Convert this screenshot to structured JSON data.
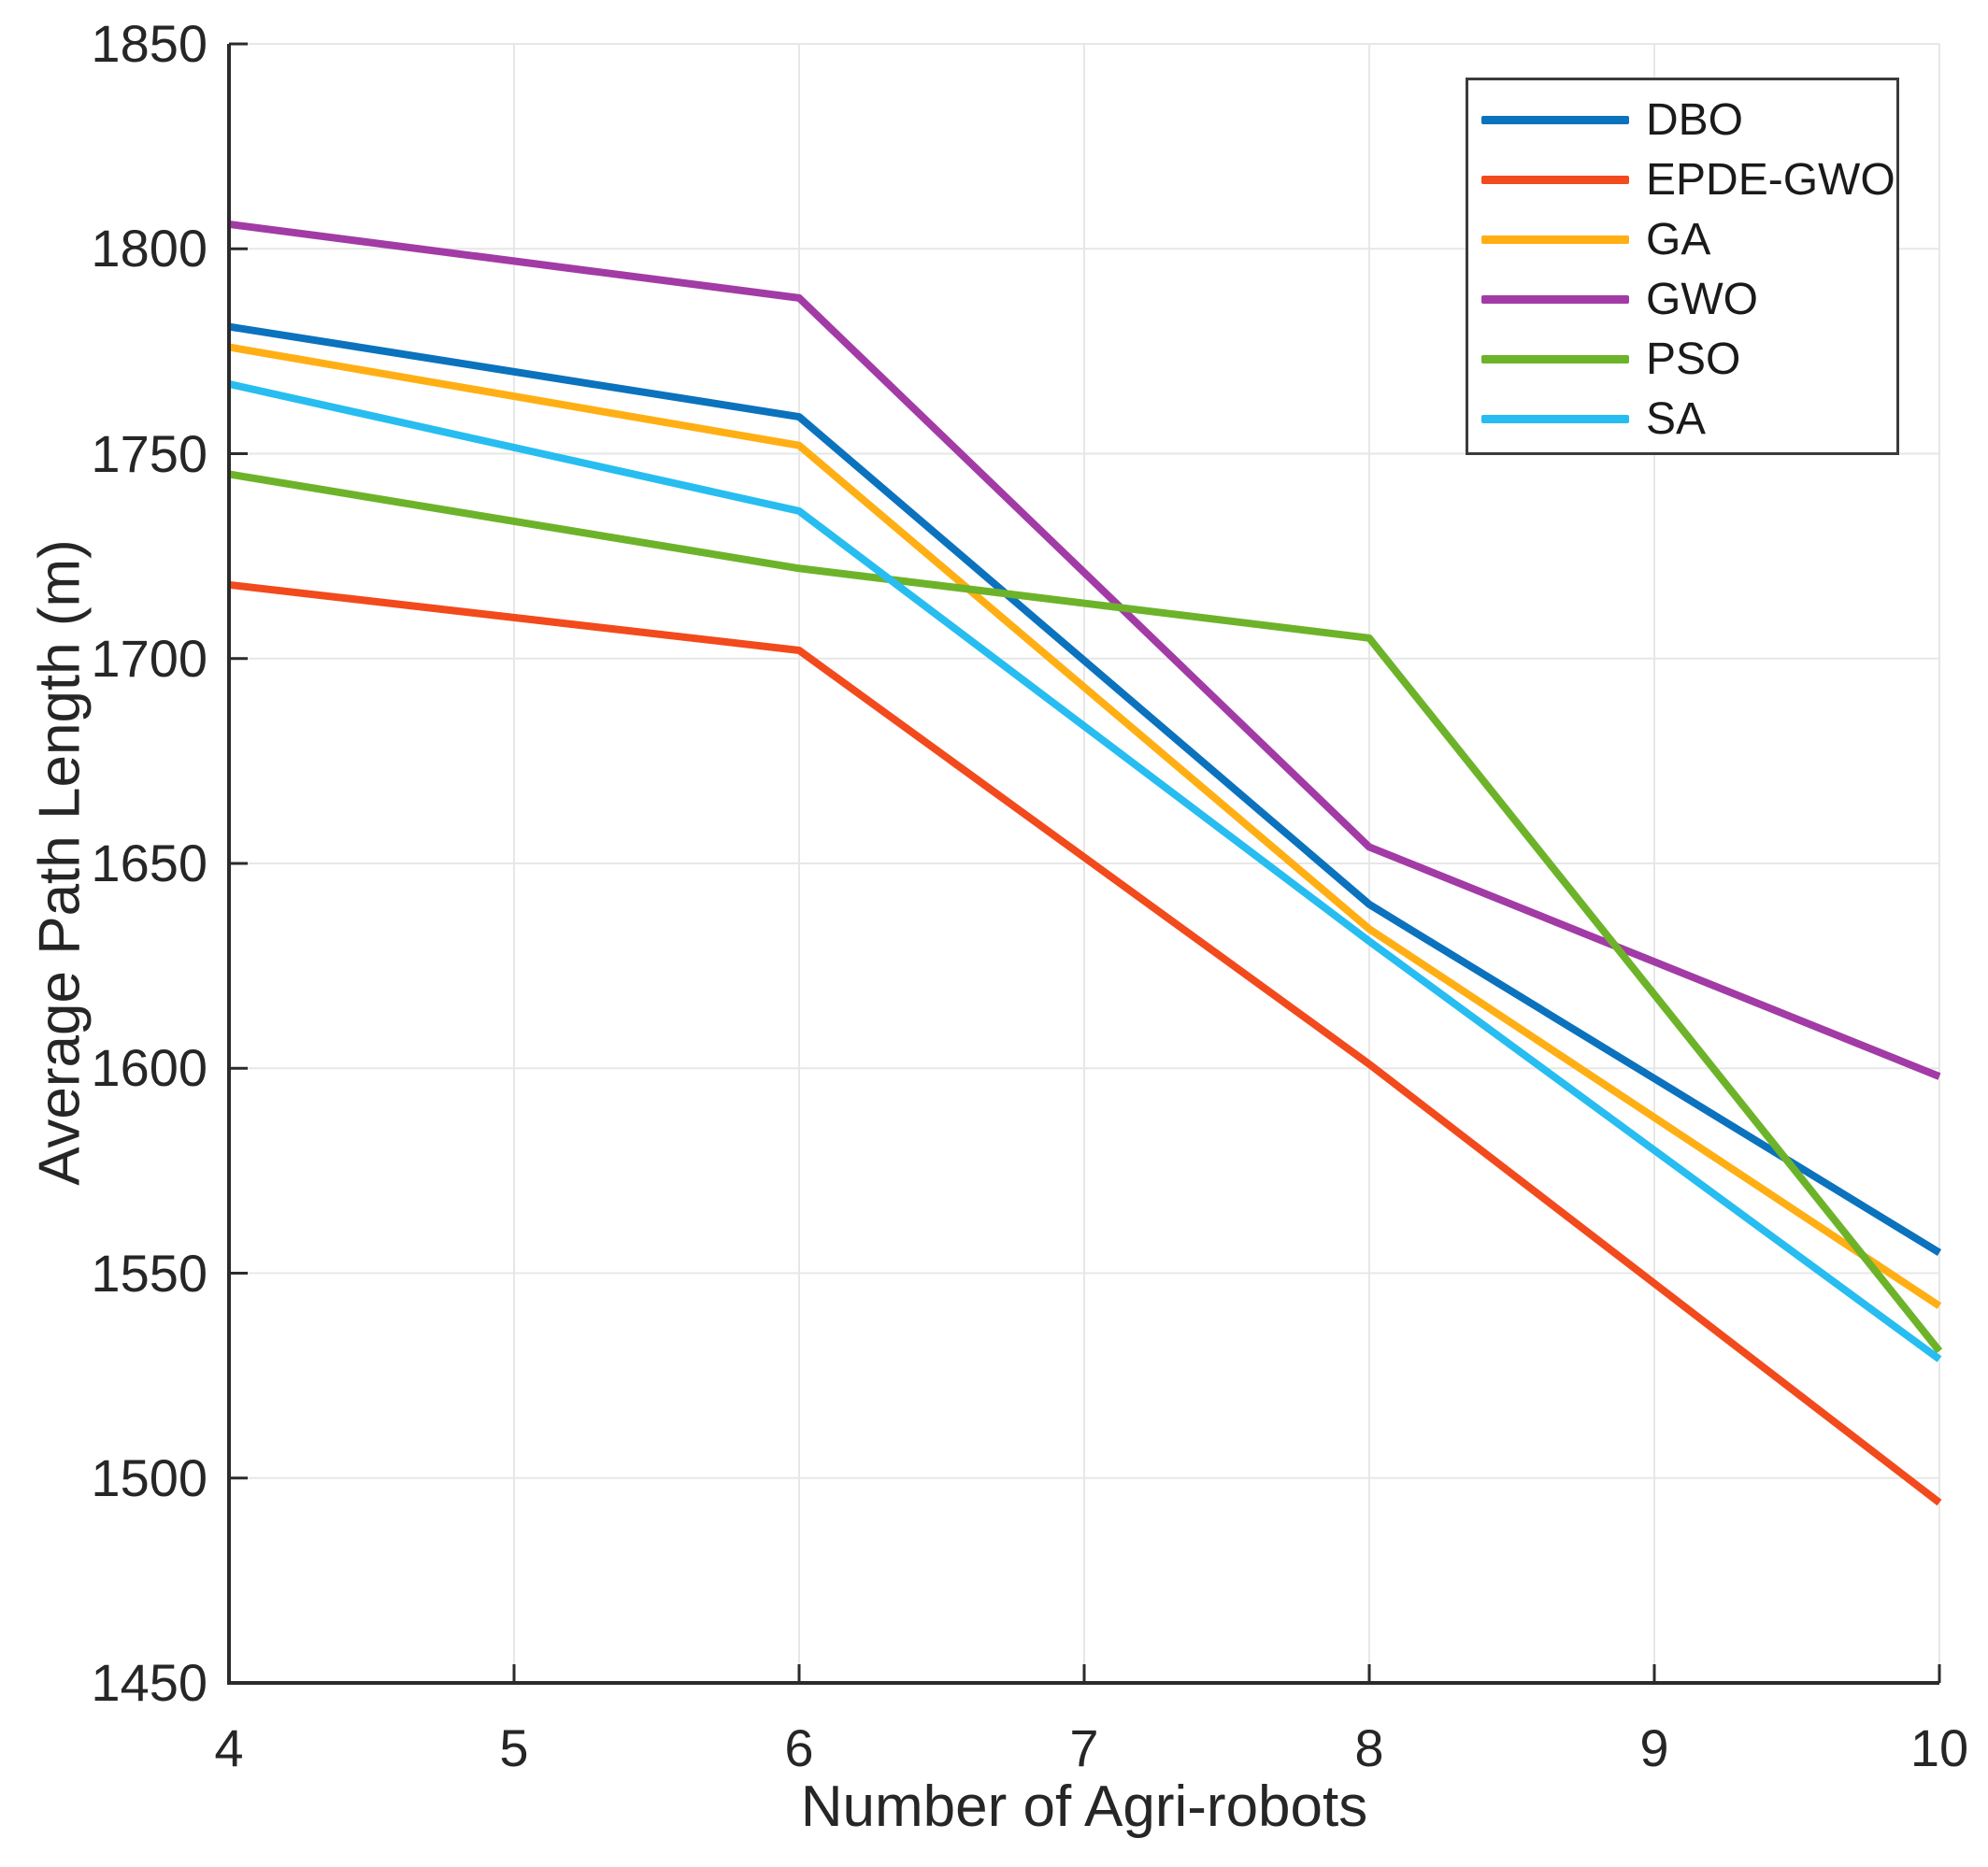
{
  "figure": {
    "background_color": "#FFFFFF"
  },
  "chart_data": {
    "type": "line",
    "title": "",
    "xlabel": "Number of Agri-robots",
    "ylabel": "Average Path Length (m)",
    "x": [
      4,
      6,
      8,
      10
    ],
    "xlim": [
      4,
      10
    ],
    "ylim": [
      1450,
      1850
    ],
    "xticks": [
      4,
      5,
      6,
      7,
      8,
      9,
      10
    ],
    "yticks": [
      1450,
      1500,
      1550,
      1600,
      1650,
      1700,
      1750,
      1800,
      1850
    ],
    "grid": true,
    "legend_position": "top-right",
    "series": [
      {
        "name": "DBO",
        "color": "#0B72BD",
        "values": [
          1781,
          1759,
          1640,
          1555
        ]
      },
      {
        "name": "EPDE-GWO",
        "color": "#F24A1C",
        "values": [
          1718,
          1702,
          1601,
          1494
        ]
      },
      {
        "name": "GA",
        "color": "#FFAF14",
        "values": [
          1776,
          1752,
          1634,
          1542
        ]
      },
      {
        "name": "GWO",
        "color": "#A23BA5",
        "values": [
          1806,
          1788,
          1654,
          1598
        ]
      },
      {
        "name": "PSO",
        "color": "#6DB32A",
        "values": [
          1745,
          1722,
          1705,
          1531
        ]
      },
      {
        "name": "SA",
        "color": "#27BDF0",
        "values": [
          1767,
          1736,
          1631,
          1529
        ]
      }
    ]
  },
  "style": {
    "grid_color": "#E7E7E7",
    "axis_color": "#2B2B2B",
    "tick_label_color": "#262626",
    "legend_border_color": "#3B3B3B",
    "legend_text_color": "#1A1A1A",
    "line_width": 8
  }
}
